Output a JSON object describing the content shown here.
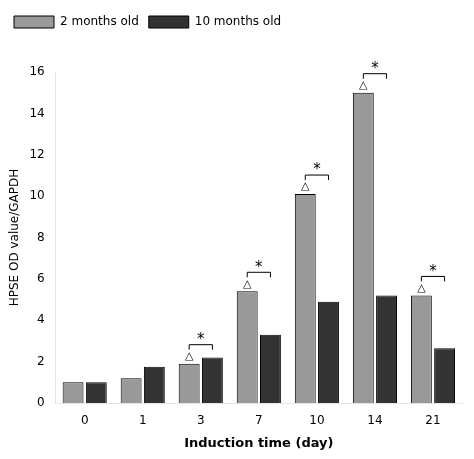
{
  "chart_data": {
    "type": "bar",
    "categories": [
      "0",
      "1",
      "3",
      "7",
      "10",
      "14",
      "21"
    ],
    "series": [
      {
        "name": "2 months old",
        "color": "#999999",
        "values": [
          1.0,
          1.2,
          1.9,
          5.4,
          10.1,
          15.0,
          5.2
        ]
      },
      {
        "name": "10 months old",
        "color": "#333333",
        "values": [
          1.0,
          1.75,
          2.2,
          3.3,
          4.9,
          5.2,
          2.65
        ]
      }
    ],
    "xlabel": "Induction time (day)",
    "ylabel": "HPSE OD value/GAPDH",
    "ylim": [
      0,
      16
    ],
    "yticks": [
      0,
      2,
      4,
      6,
      8,
      10,
      12,
      14,
      16
    ],
    "legend": "upper left",
    "grid": false,
    "annotations": [
      {
        "category": "3",
        "series": "2 months old",
        "text": "△"
      },
      {
        "category": "3",
        "text": "*"
      },
      {
        "category": "7",
        "series": "2 months old",
        "text": "△"
      },
      {
        "category": "7",
        "text": "*"
      },
      {
        "category": "10",
        "series": "2 months old",
        "text": "△"
      },
      {
        "category": "10",
        "text": "*"
      },
      {
        "category": "14",
        "series": "2 months old",
        "text": "△"
      },
      {
        "category": "14",
        "text": "*"
      },
      {
        "category": "21",
        "series": "2 months old",
        "text": "△"
      },
      {
        "category": "21",
        "text": "*"
      }
    ]
  }
}
